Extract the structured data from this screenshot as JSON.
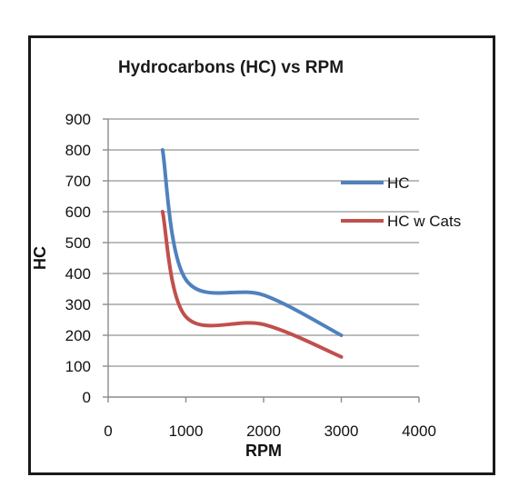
{
  "chart_data": {
    "type": "line",
    "title": "Hydrocarbons (HC) vs RPM",
    "xlabel": "RPM",
    "ylabel": "HC",
    "xlim": [
      0,
      4000
    ],
    "ylim": [
      0,
      900
    ],
    "x_ticks": [
      0,
      1000,
      2000,
      3000,
      4000
    ],
    "y_ticks": [
      0,
      100,
      200,
      300,
      400,
      500,
      600,
      700,
      800,
      900
    ],
    "grid": "horizontal",
    "legend_position": "right",
    "series": [
      {
        "name": "HC",
        "color": "#4f81bd",
        "x": [
          700,
          1000,
          2000,
          3000
        ],
        "y": [
          800,
          380,
          330,
          200
        ]
      },
      {
        "name": "HC w Cats",
        "color": "#c0504d",
        "x": [
          700,
          1000,
          2000,
          3000
        ],
        "y": [
          600,
          260,
          235,
          130
        ]
      }
    ]
  }
}
